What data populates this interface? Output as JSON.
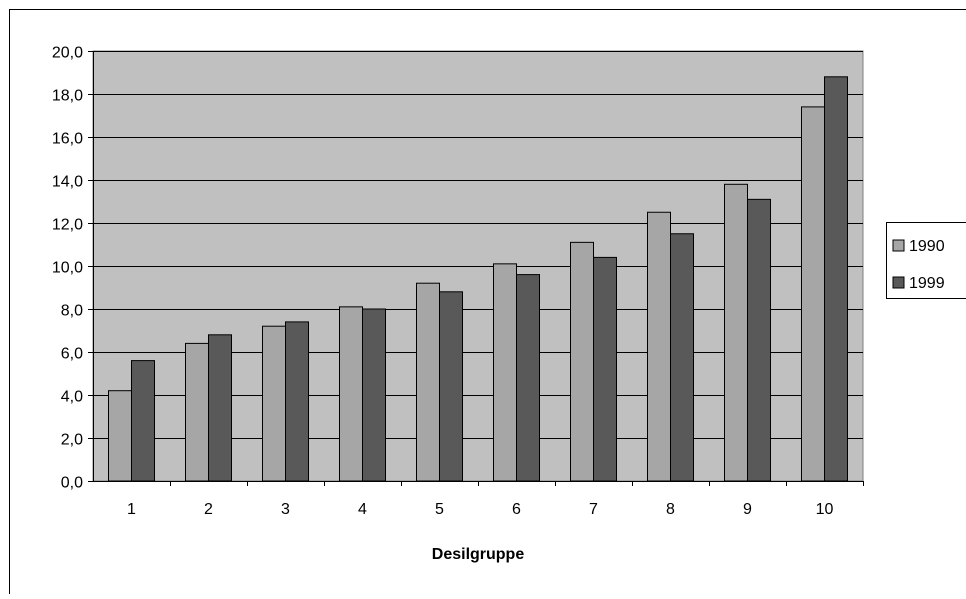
{
  "chart_data": {
    "type": "bar",
    "title": "",
    "xlabel": "Desilgruppe",
    "ylabel": "",
    "categories": [
      "1",
      "2",
      "3",
      "4",
      "5",
      "6",
      "7",
      "8",
      "9",
      "10"
    ],
    "series": [
      {
        "name": "1990",
        "color": "#a6a6a6",
        "values": [
          4.2,
          6.4,
          7.2,
          8.1,
          9.2,
          10.1,
          11.1,
          12.5,
          13.8,
          17.4
        ]
      },
      {
        "name": "1999",
        "color": "#595959",
        "values": [
          5.6,
          6.8,
          7.4,
          8.0,
          8.8,
          9.6,
          10.4,
          11.5,
          13.1,
          18.8
        ]
      }
    ],
    "ylim": [
      0,
      20
    ],
    "yticks": [
      "0,0",
      "2,0",
      "4,0",
      "6,0",
      "8,0",
      "10,0",
      "12,0",
      "14,0",
      "16,0",
      "18,0",
      "20,0"
    ],
    "grid": true,
    "plot_background": "#c0c0c0",
    "legend_position": "right"
  }
}
